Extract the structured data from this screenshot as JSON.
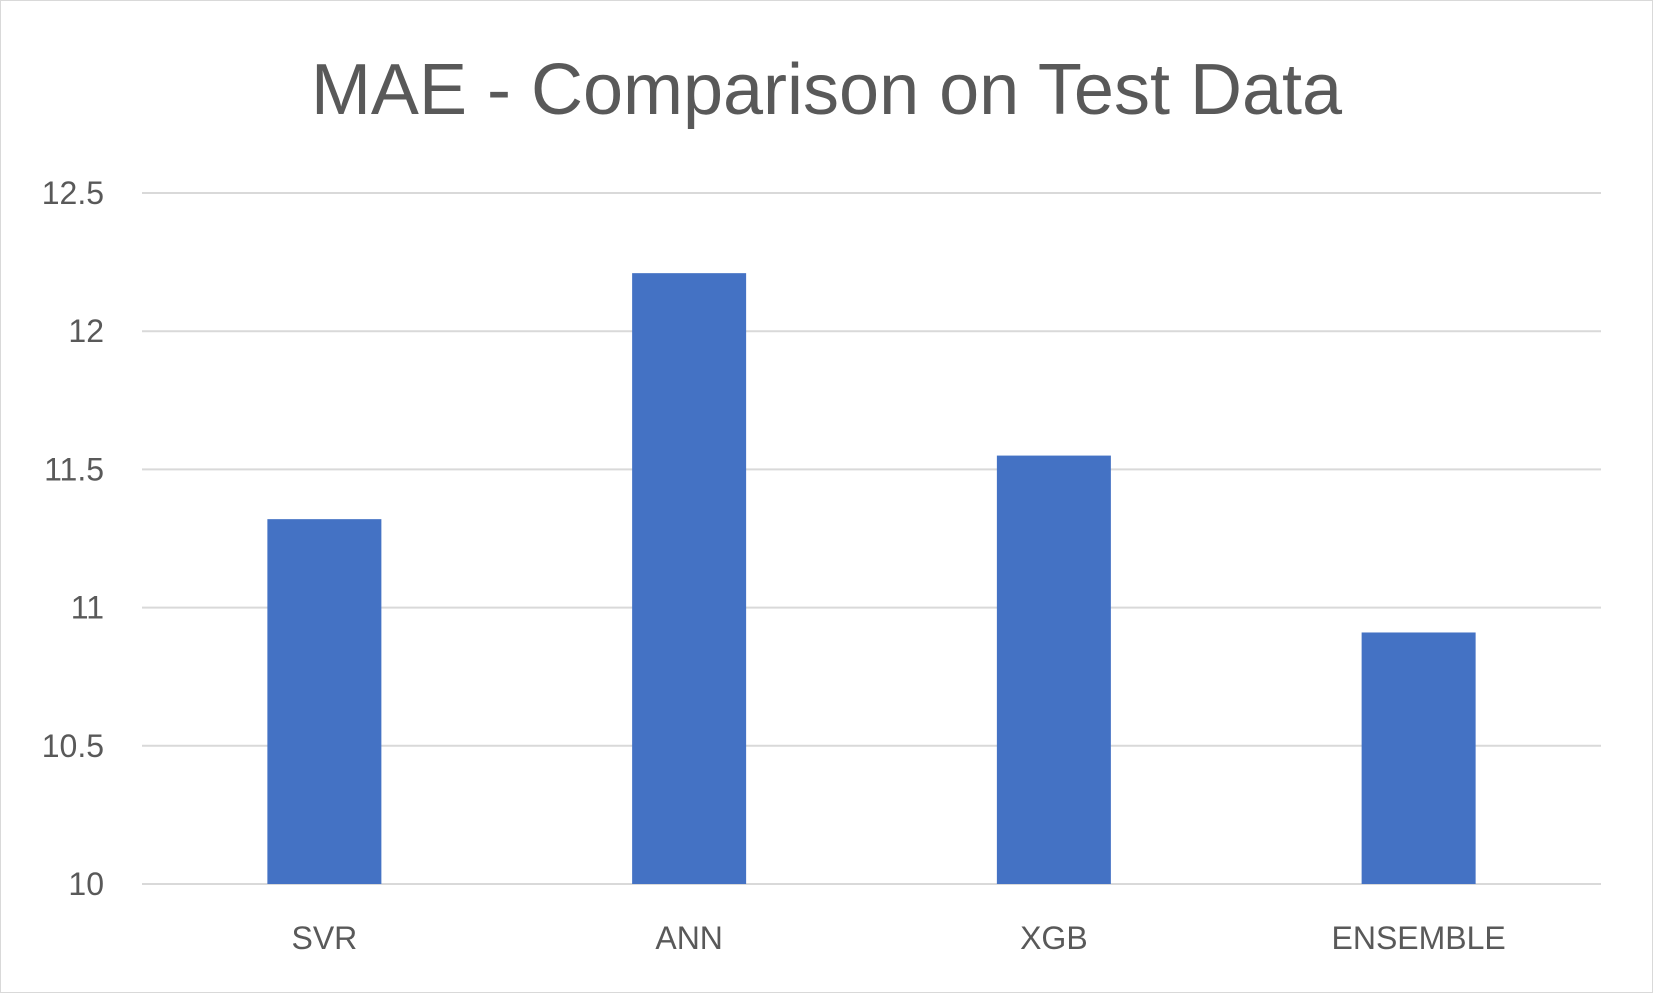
{
  "chart_data": {
    "type": "bar",
    "title": "MAE - Comparison on Test Data",
    "categories": [
      "SVR",
      "ANN",
      "XGB",
      "ENSEMBLE"
    ],
    "values": [
      11.32,
      12.21,
      11.55,
      10.91
    ],
    "ylim": [
      10,
      12.5
    ],
    "yticks": [
      "10",
      "10.5",
      "11",
      "11.5",
      "12",
      "12.5"
    ],
    "ytick_values": [
      10,
      10.5,
      11,
      11.5,
      12,
      12.5
    ],
    "xlabel": "",
    "ylabel": "",
    "grid": true,
    "legend": "none",
    "colors": {
      "bar": "#4472C4",
      "grid": "#d9d9d9",
      "text": "#595959"
    }
  }
}
